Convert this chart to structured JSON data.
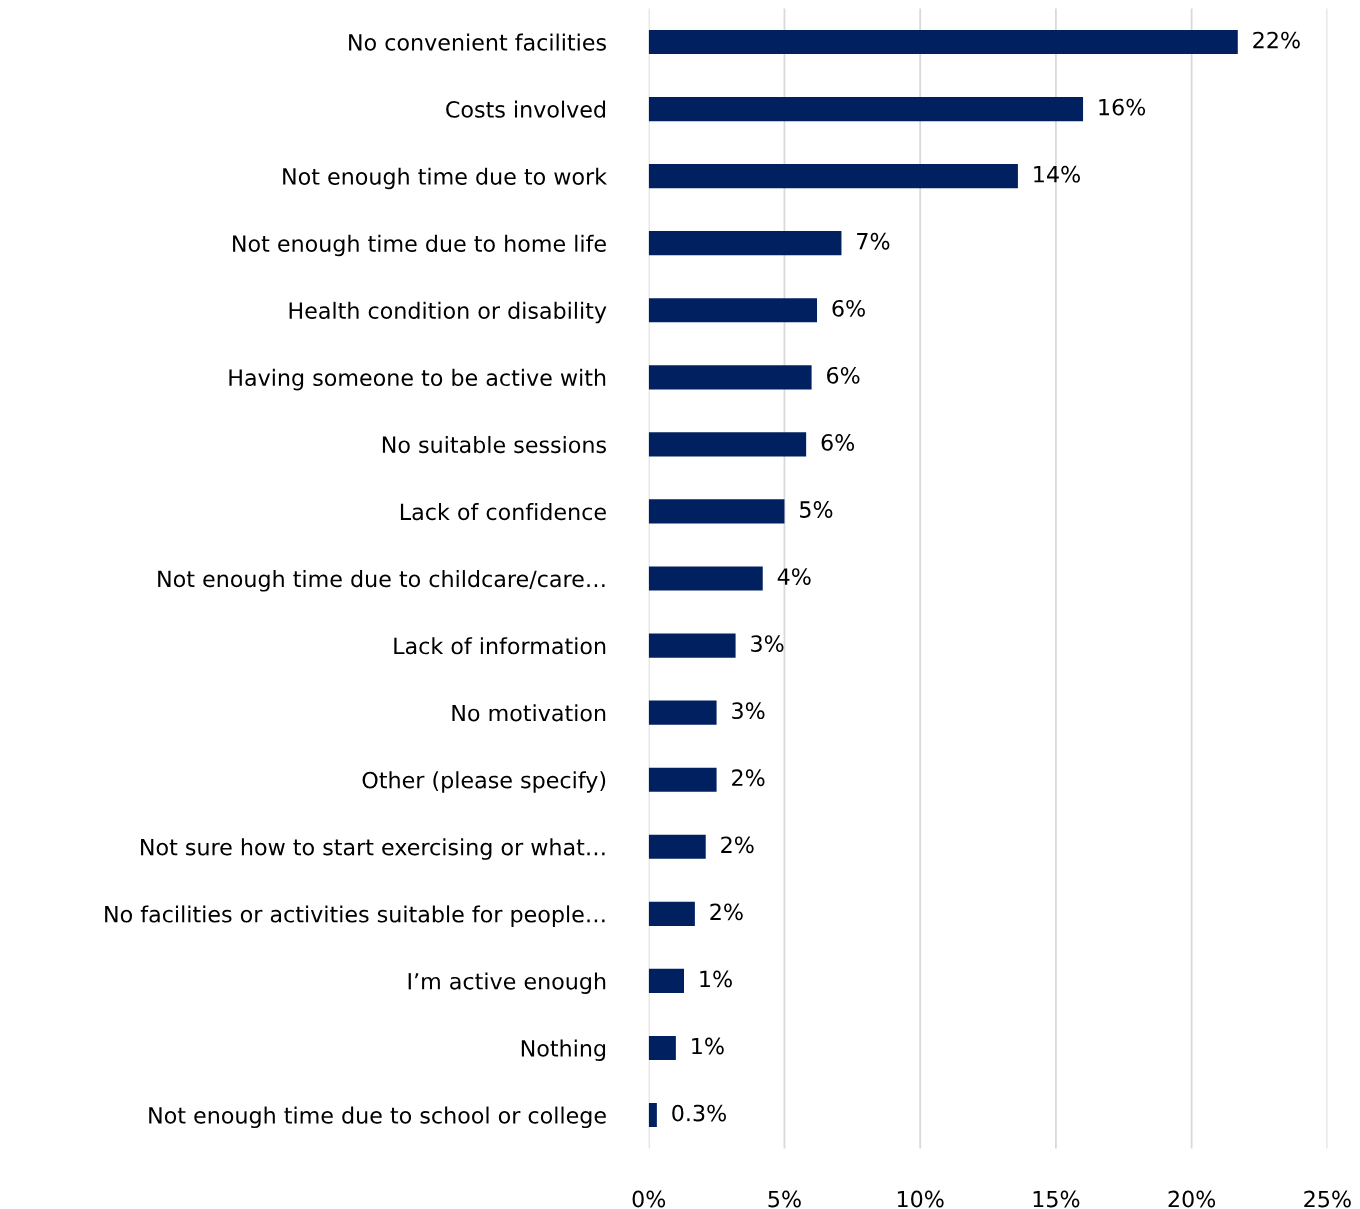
{
  "chart_data": {
    "type": "bar",
    "orientation": "horizontal",
    "categories": [
      "No convenient facilities",
      "Costs involved",
      "Not enough time due to work",
      "Not enough time due to home life",
      "Health condition or disability",
      "Having someone to be active with",
      "No suitable sessions",
      "Lack of confidence",
      "Not enough time due to childcare/care…",
      "Lack of information",
      "No motivation",
      "Other (please specify)",
      "Not sure how to start exercising or what…",
      "No facilities or activities suitable for people…",
      "I’m active enough",
      "Nothing",
      "Not enough time due to school or college"
    ],
    "values": [
      21.7,
      16.0,
      13.6,
      7.1,
      6.2,
      6.0,
      5.8,
      5.0,
      4.2,
      3.2,
      2.5,
      2.5,
      2.1,
      1.7,
      1.3,
      1.0,
      0.3
    ],
    "value_labels": [
      "22%",
      "16%",
      "14%",
      "7%",
      "6%",
      "6%",
      "6%",
      "5%",
      "4%",
      "3%",
      "3%",
      "2%",
      "2%",
      "2%",
      "1%",
      "1%",
      "0.3%"
    ],
    "color": "#002060",
    "xlim": [
      0,
      25
    ],
    "xticks": [
      {
        "value": 0,
        "label": "0%"
      },
      {
        "value": 5,
        "label": "5%"
      },
      {
        "value": 10,
        "label": "10%"
      },
      {
        "value": 15,
        "label": "15%"
      },
      {
        "value": 20,
        "label": "20%"
      },
      {
        "value": 25,
        "label": "25%"
      }
    ],
    "grid": "x"
  }
}
